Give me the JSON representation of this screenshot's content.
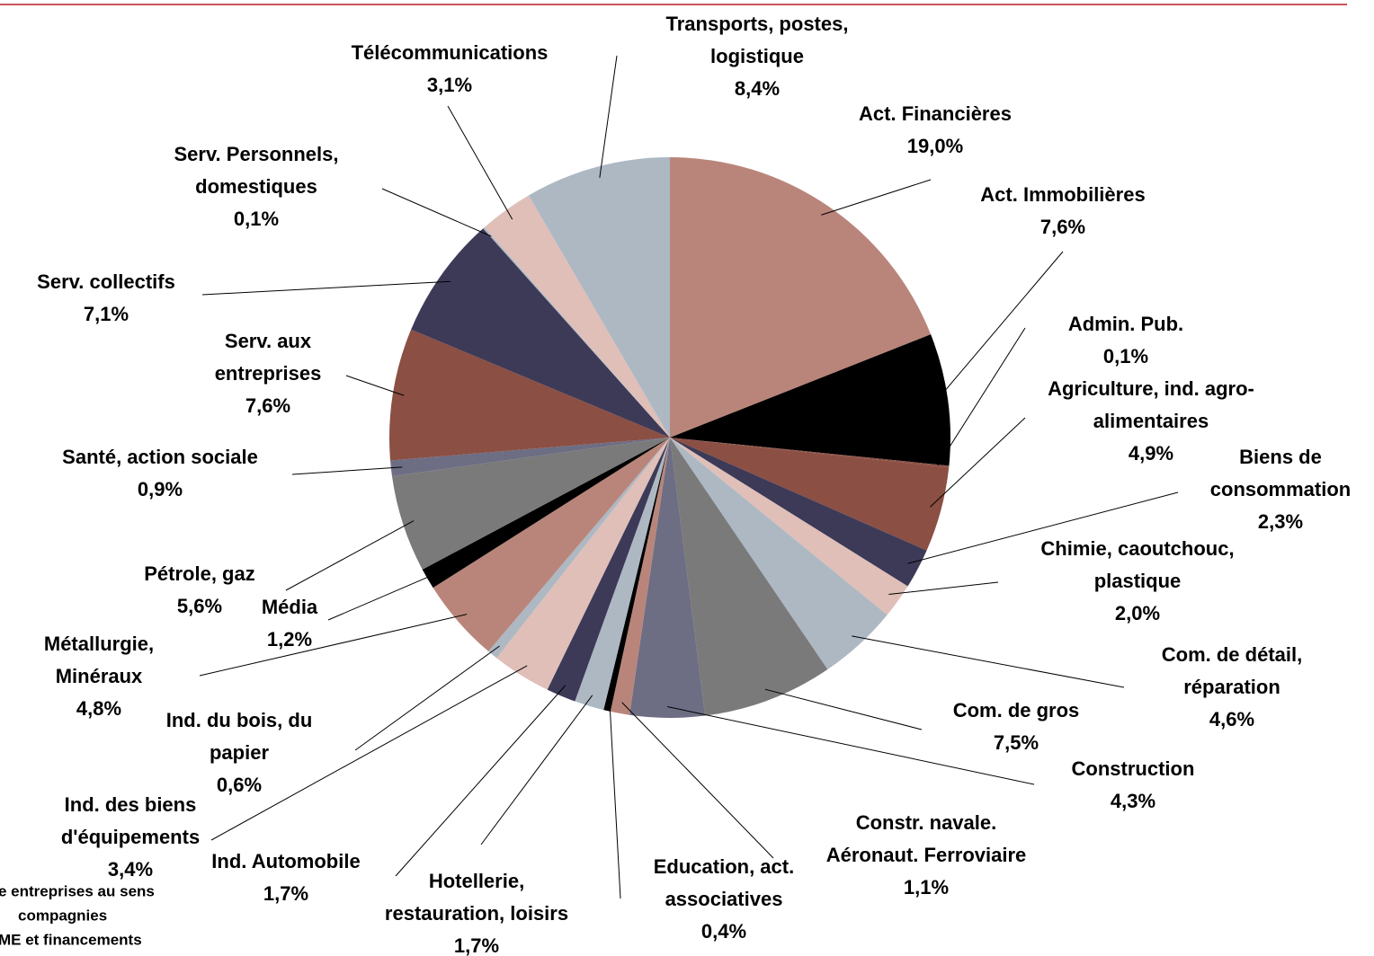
{
  "chart_data": {
    "type": "pie",
    "categories": [
      [
        "Act. Financières"
      ],
      [
        "Act. Immobilières"
      ],
      [
        "Admin. Pub."
      ],
      [
        "Agriculture, ind. agro-",
        "alimentaires"
      ],
      [
        "Biens de",
        "consommation"
      ],
      [
        "Chimie, caoutchouc,",
        "plastique"
      ],
      [
        "Com. de détail,",
        "réparation"
      ],
      [
        "Com. de gros"
      ],
      [
        "Construction"
      ],
      [
        "Constr. navale.",
        "Aéronaut. Ferroviaire"
      ],
      [
        "Education, act.",
        "associatives"
      ],
      [
        "Hotellerie,",
        "restauration, loisirs"
      ],
      [
        "Ind. Automobile"
      ],
      [
        "Ind. des biens",
        "d'équipements"
      ],
      [
        "Ind. du bois, du",
        "papier"
      ],
      [
        "Métallurgie,",
        "Minéraux"
      ],
      [
        "Média"
      ],
      [
        "Pétrole, gaz"
      ],
      [
        "Santé, action sociale"
      ],
      [
        "Serv. aux",
        "entreprises"
      ],
      [
        "Serv. collectifs"
      ],
      [
        "Serv. Personnels,",
        "domestiques"
      ],
      [
        "Télécommunications"
      ],
      [
        "Transports, postes,",
        "logistique"
      ]
    ],
    "values": [
      19.0,
      7.6,
      0.1,
      4.9,
      2.3,
      2.0,
      4.6,
      7.5,
      4.3,
      1.1,
      0.4,
      1.7,
      1.7,
      3.4,
      0.6,
      4.8,
      1.2,
      5.6,
      0.9,
      7.6,
      7.1,
      0.1,
      3.1,
      8.4
    ],
    "value_labels": [
      "19,0%",
      "7,6%",
      "0,1%",
      "4,9%",
      "2,3%",
      "2,0%",
      "4,6%",
      "7,5%",
      "4,3%",
      "1,1%",
      "0,4%",
      "1,7%",
      "1,7%",
      "3,4%",
      "0,6%",
      "4,8%",
      "1,2%",
      "5,6%",
      "0,9%",
      "7,6%",
      "7,1%",
      "0,1%",
      "3,1%",
      "8,4%"
    ],
    "colors": [
      "#b9857a",
      "#000000",
      "#8b4f44",
      "#8b4f44",
      "#3d3a58",
      "#dfbfb8",
      "#adb8c3",
      "#7a7a7a",
      "#6d6d84",
      "#b9857a",
      "#000000",
      "#adb8c3",
      "#3d3a58",
      "#dfbfb8",
      "#adb8c3",
      "#b9857a",
      "#000000",
      "#7a7a7a",
      "#6d6d84",
      "#8b4f44",
      "#3d3a58",
      "#adb8c3",
      "#dfbfb8",
      "#adb8c3"
    ],
    "footnote": [
      "e entreprises au sens",
      "compagnies",
      "ME et financements"
    ]
  }
}
